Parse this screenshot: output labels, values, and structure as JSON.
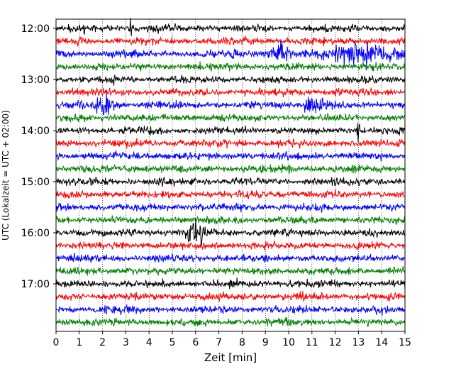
{
  "chart_data": {
    "type": "line",
    "title": "",
    "xlabel": "Zeit  [min]",
    "ylabel": "UTC (Lokalzeit = UTC + 02:00)",
    "xlim": [
      0,
      15
    ],
    "x_ticks": [
      "0",
      "1",
      "2",
      "3",
      "4",
      "5",
      "6",
      "7",
      "8",
      "9",
      "10",
      "11",
      "12",
      "13",
      "14",
      "15"
    ],
    "y_ticks": [
      "12:00",
      "13:00",
      "14:00",
      "15:00",
      "16:00",
      "17:00"
    ],
    "grid": true,
    "trace_interval_min": 15,
    "first_trace_utc": "12:00",
    "last_trace_utc": "17:45",
    "trace_count": 24,
    "color_cycle": [
      "#000000",
      "#ff0000",
      "#0000ff",
      "#008000"
    ],
    "events": [
      {
        "trace_utc": "12:00",
        "minute": 3.2,
        "description": "spike"
      },
      {
        "trace_utc": "12:30",
        "minute": 9.6,
        "description": "burst"
      },
      {
        "trace_utc": "12:30",
        "minute": 13.0,
        "description": "large burst"
      },
      {
        "trace_utc": "13:30",
        "minute": 2.1,
        "description": "burst"
      },
      {
        "trace_utc": "13:30",
        "minute": 11.1,
        "description": "burst"
      },
      {
        "trace_utc": "14:00",
        "minute": 13.0,
        "description": "spike"
      },
      {
        "trace_utc": "16:00",
        "minute": 6.0,
        "description": "burst"
      }
    ]
  }
}
